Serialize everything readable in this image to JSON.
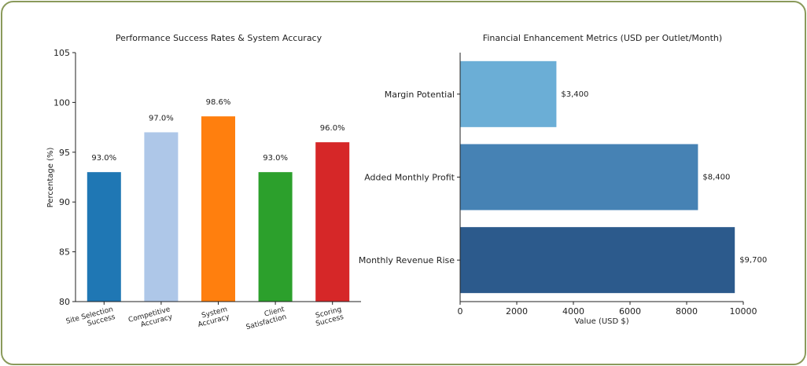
{
  "chart_data": [
    {
      "type": "bar",
      "title": "Performance Success Rates & System Accuracy",
      "xlabel": "",
      "ylabel": "Percentage (%)",
      "ylim": [
        80,
        105
      ],
      "yticks": [
        "80",
        "85",
        "90",
        "95",
        "100",
        "105"
      ],
      "categories": [
        [
          "Site Selection",
          "Success"
        ],
        [
          "Competitive",
          "Accuracy"
        ],
        [
          "System",
          "Accuracy"
        ],
        [
          "Client",
          "Satisfaction"
        ],
        [
          "Scoring",
          "Success"
        ]
      ],
      "values": [
        93.0,
        97.0,
        98.6,
        93.0,
        96.0
      ],
      "value_labels": [
        "93.0%",
        "97.0%",
        "98.6%",
        "93.0%",
        "96.0%"
      ],
      "colors": [
        "#1f77b4",
        "#aec7e8",
        "#ff7f0e",
        "#2ca02c",
        "#d62728"
      ],
      "grid": false
    },
    {
      "type": "bar",
      "orientation": "horizontal",
      "title": "Financial Enhancement Metrics (USD per Outlet/Month)",
      "xlabel": "Value (USD $)",
      "ylabel": "",
      "xlim": [
        0,
        10000
      ],
      "xticks": [
        "0",
        "2000",
        "4000",
        "6000",
        "8000",
        "10000"
      ],
      "categories": [
        "Margin Potential",
        "Added Monthly Profit",
        "Monthly Revenue Rise"
      ],
      "values": [
        3400,
        8400,
        9700
      ],
      "value_labels": [
        "$3,400",
        "$8,400",
        "$9,700"
      ],
      "colors": [
        "#6baed6",
        "#4682b4",
        "#2c5a8c"
      ],
      "grid": false
    }
  ]
}
